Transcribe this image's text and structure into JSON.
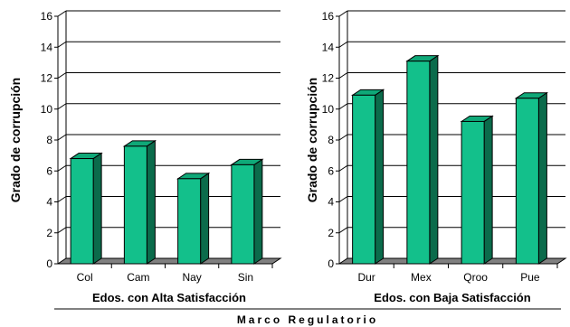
{
  "footer": "Marco Regulatorio",
  "colors": {
    "bar_front": "#13c08b",
    "bar_side": "#0b6b4b",
    "bar_top": "#0fa878",
    "floor": "#808080",
    "grid": "#000000"
  },
  "chart_data": [
    {
      "type": "bar",
      "categories": [
        "Col",
        "Cam",
        "Nay",
        "Sin"
      ],
      "values": [
        6.8,
        7.6,
        5.5,
        6.4
      ],
      "ylabel": "Grado de corrupción",
      "xlabel": "Edos. con Alta Satisfacción",
      "ylim": [
        0,
        16
      ],
      "yticks": [
        0,
        2,
        4,
        6,
        8,
        10,
        12,
        14,
        16
      ],
      "grid": true
    },
    {
      "type": "bar",
      "categories": [
        "Dur",
        "Mex",
        "Qroo",
        "Pue"
      ],
      "values": [
        10.9,
        13.1,
        9.2,
        10.7
      ],
      "ylabel": "Grado de corrupción",
      "xlabel": "Edos. con Baja Satisfacción",
      "ylim": [
        0,
        16
      ],
      "yticks": [
        0,
        2,
        4,
        6,
        8,
        10,
        12,
        14,
        16
      ],
      "grid": true
    }
  ]
}
